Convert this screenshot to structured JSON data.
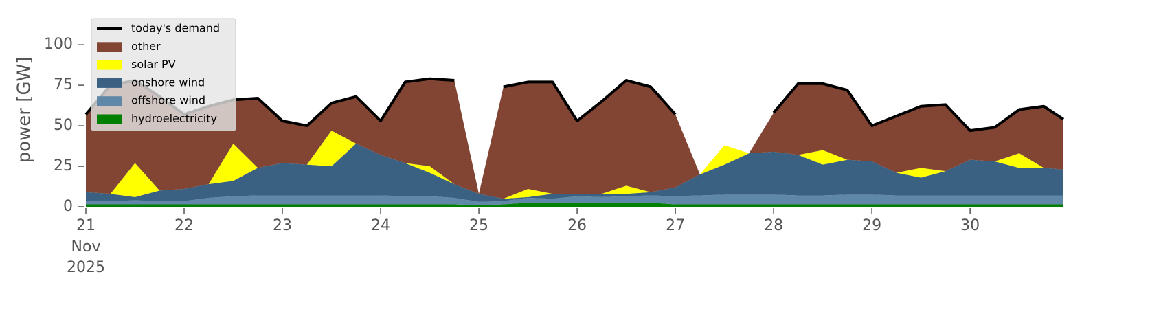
{
  "chart_data": {
    "type": "area",
    "y_label": "power [GW]",
    "month_label": "Nov",
    "year_label": "2025",
    "x": [
      21,
      21.25,
      21.5,
      21.75,
      22,
      22.25,
      22.5,
      22.75,
      23,
      23.25,
      23.5,
      23.75,
      24,
      24.25,
      24.5,
      24.75,
      25,
      25.25,
      25.5,
      25.75,
      26,
      26.25,
      26.5,
      26.75,
      27,
      27.25,
      27.5,
      27.75,
      28,
      28.25,
      28.5,
      28.75,
      29,
      29.25,
      29.5,
      29.75,
      30,
      30.25,
      30.5,
      30.75,
      30.95
    ],
    "xlim": [
      21,
      30.95
    ],
    "xticks": [
      21,
      22,
      23,
      24,
      25,
      26,
      27,
      28,
      29,
      30
    ],
    "ylim": [
      0,
      120
    ],
    "yticks": [
      0,
      25,
      50,
      75,
      100
    ],
    "line_series": {
      "name": "today's demand",
      "color": "#000000",
      "values": [
        57,
        75,
        78,
        68,
        57,
        62,
        66,
        67,
        53,
        50,
        64,
        68,
        53,
        77,
        79,
        78,
        null,
        74,
        77,
        77,
        53,
        65,
        78,
        74,
        57,
        null,
        null,
        null,
        58,
        76,
        76,
        72,
        50,
        56,
        62,
        63,
        47,
        49,
        60,
        62,
        54
      ]
    },
    "series": [
      {
        "name": "other",
        "color": "#824534",
        "values": [
          48,
          67,
          51,
          58,
          46,
          48,
          27,
          43,
          26,
          24,
          17,
          29,
          21,
          50,
          54,
          64,
          0,
          69,
          66,
          69,
          45,
          57,
          65,
          65,
          45,
          0,
          0,
          0,
          24,
          44,
          41,
          43,
          22,
          35,
          38,
          41,
          18,
          21,
          27,
          38,
          31
        ]
      },
      {
        "name": "solar PV",
        "color": "#ffff00",
        "values": [
          0,
          0,
          21,
          0,
          0,
          0,
          23,
          0,
          0,
          0,
          22,
          0,
          0,
          0,
          4,
          0,
          0,
          0,
          5,
          0,
          0,
          0,
          5,
          0,
          0,
          0,
          12,
          0,
          0,
          0,
          9,
          0,
          0,
          0,
          6,
          0,
          0,
          0,
          9,
          0,
          0
        ]
      },
      {
        "name": "onshore wind",
        "color": "#3b6182",
        "values": [
          5.5,
          4.5,
          2,
          6.5,
          7.5,
          8.5,
          9.5,
          17,
          20,
          19,
          18,
          32,
          25,
          20.5,
          14.5,
          8.5,
          5,
          1.5,
          0.5,
          3,
          1.5,
          2,
          1.5,
          2,
          5.5,
          13,
          18.5,
          25.5,
          26.5,
          25,
          19,
          21.5,
          20.5,
          14,
          11,
          15,
          22,
          21,
          17,
          17,
          16
        ]
      },
      {
        "name": "offshore wind",
        "color": "#5f87a8",
        "values": [
          2,
          2,
          2.5,
          2,
          2,
          4,
          5,
          5.5,
          5.5,
          5.5,
          5.5,
          5.5,
          5.5,
          5,
          5,
          4,
          2,
          2,
          3,
          2.5,
          4,
          3.5,
          4,
          4.5,
          5,
          5.5,
          6,
          6,
          6,
          5.5,
          5.5,
          6,
          6,
          5.5,
          5.5,
          5.5,
          5.5,
          5.5,
          5.5,
          5.5,
          5.5
        ]
      },
      {
        "name": "hydroelectricity",
        "color": "#008000",
        "values": [
          1.5,
          1.5,
          1.5,
          1.5,
          1.5,
          1.5,
          1.5,
          1.5,
          1.5,
          1.5,
          1.5,
          1.5,
          1.5,
          1.5,
          1.5,
          1.5,
          1,
          1.5,
          2.5,
          2.5,
          2.5,
          2.5,
          2.5,
          2.5,
          1.5,
          1.5,
          1.5,
          1.5,
          1.5,
          1.5,
          1.5,
          1.5,
          1.5,
          1.5,
          1.5,
          1.5,
          1.5,
          1.5,
          1.5,
          1.5,
          1.5
        ]
      }
    ]
  }
}
